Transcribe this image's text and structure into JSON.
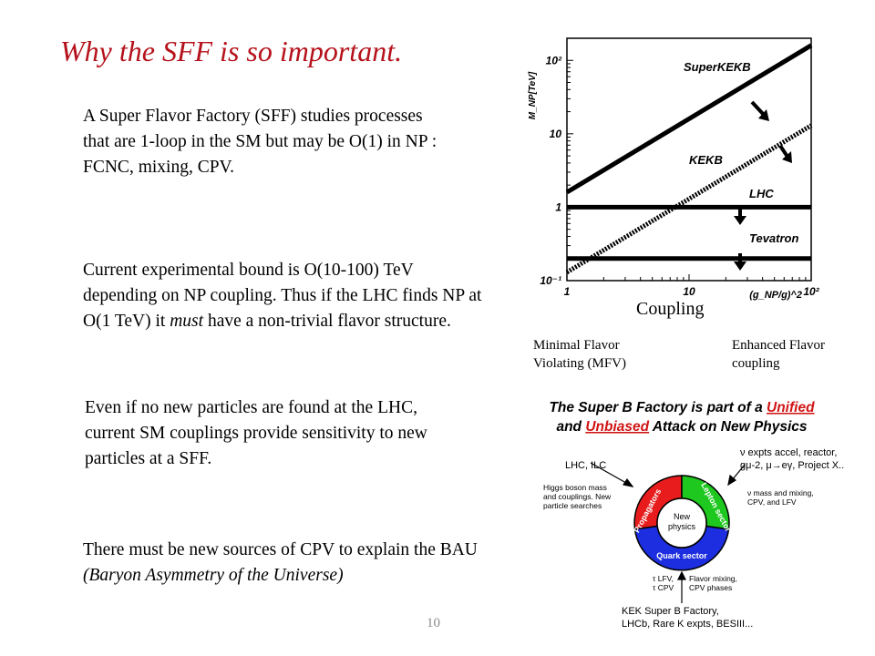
{
  "slide": {
    "title": "Why the SFF is so important.",
    "page_number": "10"
  },
  "paragraphs": {
    "p1": "A Super Flavor Factory (SFF) studies processes that are 1-loop in the SM but may be O(1) in NP : FCNC, mixing, CPV.",
    "p2_line1": "Current experimental bound is O(10-100) TeV depending on NP coupling. Thus if the LHC finds NP at O(1 TeV) it ",
    "p2_em": "must",
    "p2_line2": " have a non-trivial flavor structure.",
    "p3": "Even if no new particles are found at the LHC, current SM couplings provide sensitivity to new particles at a SFF.",
    "p4_main": "There must be new sources of CPV to explain the BAU ",
    "p4_em": "(Baryon Asymmetry of the Universe)"
  },
  "chart_data": {
    "type": "line",
    "x_scale": "log",
    "y_scale": "log",
    "xlim": [
      1,
      100
    ],
    "ylim": [
      0.1,
      200
    ],
    "ylabel": "M_NP[TeV]",
    "xlabel": "(g_NP/g)^2",
    "x_ticks": [
      "1",
      "10",
      "10²"
    ],
    "y_ticks": [
      "10⁻¹",
      "1",
      "10",
      "10²"
    ],
    "series": [
      {
        "name": "SuperKEKB",
        "style": "solid",
        "x": [
          1,
          100
        ],
        "y": [
          1.6,
          160
        ]
      },
      {
        "name": "KEKB",
        "style": "dotted",
        "x": [
          1,
          100
        ],
        "y": [
          0.13,
          13
        ]
      },
      {
        "name": "LHC",
        "style": "solid",
        "x": [
          1,
          100
        ],
        "y": [
          1,
          1
        ]
      },
      {
        "name": "Tevatron",
        "style": "solid",
        "x": [
          1,
          100
        ],
        "y": [
          0.2,
          0.2
        ]
      }
    ],
    "below_axis_label": "Coupling",
    "captions": {
      "left_line1": "Minimal Flavor",
      "left_line2": "Violating (MFV)",
      "right_line1": "Enhanced Flavor",
      "right_line2": "coupling"
    }
  },
  "diagram": {
    "title_line1_a": "The Super B Factory is part of a ",
    "title_line1_b": "Unified",
    "title_line2_a": "and ",
    "title_line2_b": "Unbiased",
    "title_line2_c": " Attack on New Physics",
    "center_line1": "New",
    "center_line2": "physics",
    "sector_left": "Propagators",
    "sector_right": "Lepton sector",
    "sector_bottom": "Quark sector",
    "lhc_ilc": "LHC, ILC",
    "higgs_line1": "Higgs boson mass",
    "higgs_line2": "and couplings. New",
    "higgs_line3": "particle searches",
    "nu_expts_line1": "ν expts accel, reactor,",
    "nu_expts_line2": "gμ-2, μ→eγ, Project X..",
    "nu_mass_line1": "ν mass and mixing,",
    "nu_mass_line2": "CPV, and LFV",
    "tau_line1": "τ LFV,",
    "tau_line2": "τ CPV",
    "flavor_line1": "Flavor mixing,",
    "flavor_line2": "CPV phases",
    "kek_line1": "KEK Super B Factory,",
    "kek_line2": "LHCb, Rare K expts, BESIII..."
  },
  "colors": {
    "title": "#b5121b",
    "ring_red": "#e81c1c",
    "ring_green": "#1ec81e",
    "ring_blue": "#1c2ee0",
    "underline_red": "#d01515"
  }
}
